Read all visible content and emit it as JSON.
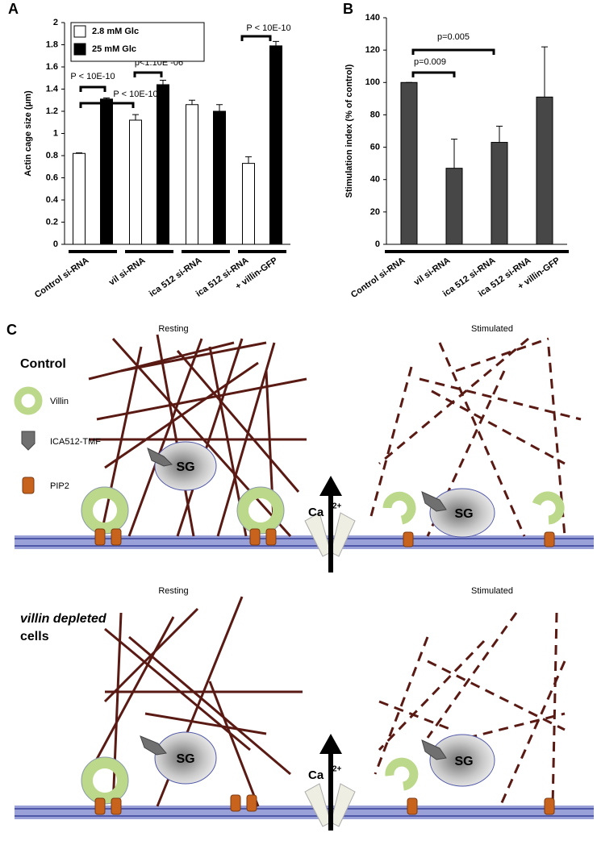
{
  "chart_data": [
    {
      "type": "bar",
      "panel_label": "A",
      "y_label": "Actin cage size (μm)",
      "categories": [
        [
          "Control si-RNA"
        ],
        [
          "vil si-RNA"
        ],
        [
          "ica 512 si-RNA"
        ],
        [
          "ica 512 si-RNA",
          "+ villin-GFP"
        ]
      ],
      "series": [
        {
          "name": "2.8 mM Glc",
          "color": "#ffffff",
          "values": [
            0.82,
            1.12,
            1.26,
            0.73
          ],
          "errors": [
            0.005,
            0.05,
            0.04,
            0.06
          ]
        },
        {
          "name": "25 mM Glc",
          "color": "#000000",
          "values": [
            1.31,
            1.44,
            1.2,
            1.79
          ],
          "errors": [
            0.01,
            0.04,
            0.06,
            0.04
          ]
        }
      ],
      "ylim": [
        0,
        2
      ],
      "yticks": [
        0,
        0.2,
        0.4,
        0.6,
        0.8,
        1,
        1.2,
        1.4,
        1.6,
        1.8,
        2
      ],
      "annotations": [
        "P < 10E-10",
        "P < 10E-10",
        "p<1.10E -06",
        "P < 10E-10"
      ]
    },
    {
      "type": "bar",
      "panel_label": "B",
      "y_label": "Stimulation index  (% of control)",
      "categories": [
        [
          "Control si-RNA"
        ],
        [
          "vil si-RNA"
        ],
        [
          "ica 512 si-RNA"
        ],
        [
          "ica 512 si-RNA",
          "+ villin-GFP"
        ]
      ],
      "values": [
        100,
        47,
        63,
        91
      ],
      "errors": [
        0,
        18,
        10,
        31
      ],
      "color": "#474747",
      "ylim": [
        0,
        140
      ],
      "yticks": [
        0,
        20,
        40,
        60,
        80,
        100,
        120,
        140
      ],
      "annotations": [
        "p=0.009",
        "p=0.005"
      ]
    }
  ],
  "diagram": {
    "panel_label": "C",
    "legend": [
      "Villin",
      "ICA512-TMF",
      "PIP2"
    ],
    "rows": [
      {
        "label_lines": [
          "Control"
        ],
        "resting": "Resting",
        "stimulated": "Stimulated",
        "granule": "SG",
        "ion": "Ca",
        "ion_charge": "2+"
      },
      {
        "label_lines": [
          "villin depleted",
          "cells"
        ],
        "resting": "Resting",
        "stimulated": "Stimulated",
        "granule": "SG",
        "ion": "Ca",
        "ion_charge": "2+"
      }
    ]
  }
}
